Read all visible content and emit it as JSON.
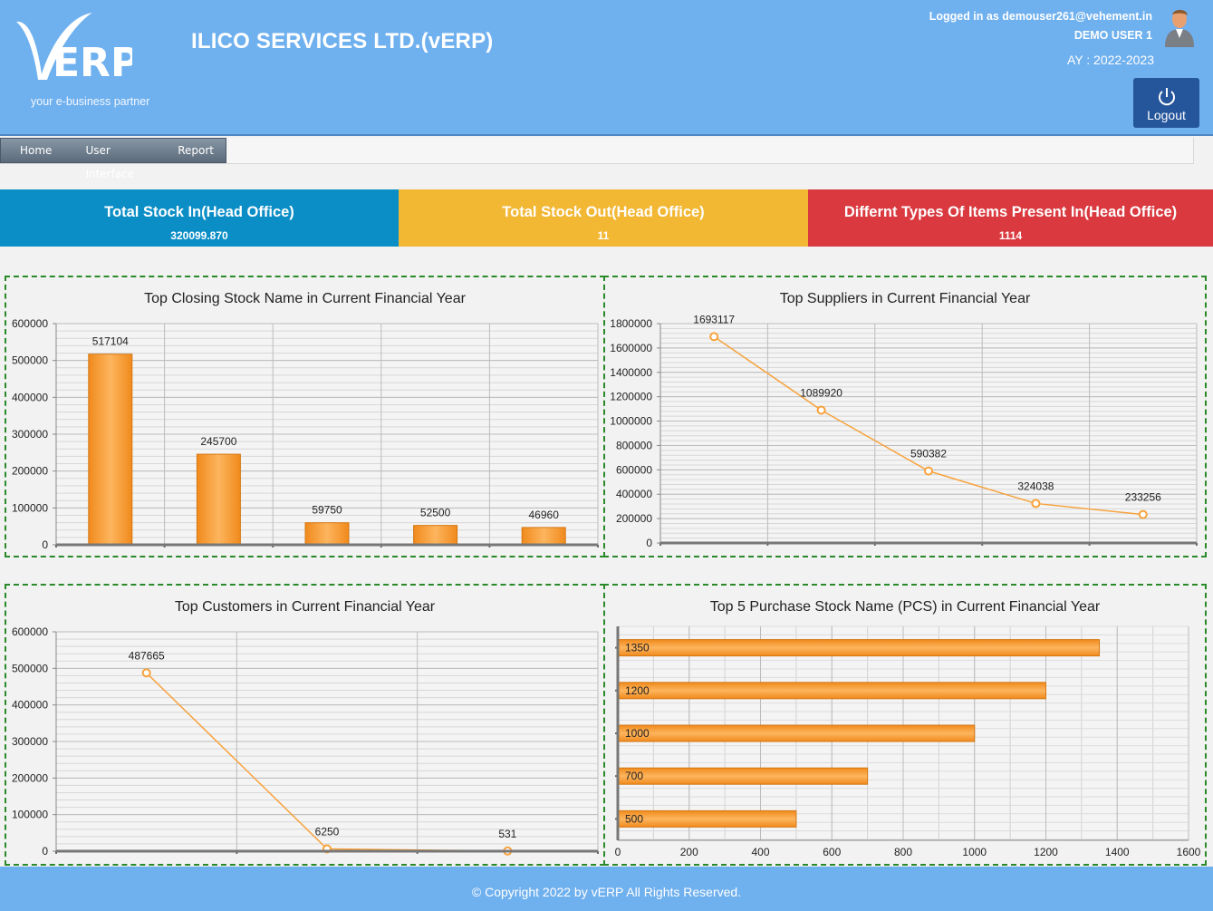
{
  "header": {
    "tagline": "your e-business partner",
    "company": "ILICO SERVICES LTD.(vERP)",
    "logged_in": "Logged in as demouser261@vehement.in",
    "user_name": "DEMO USER 1",
    "ay": "AY : 2022-2023",
    "logout_label": "Logout"
  },
  "menu": {
    "items": [
      "Home",
      "User Interface",
      "Report"
    ]
  },
  "stats": [
    {
      "label": "Total Stock In(Head Office)",
      "value": "320099.870",
      "color": "#0b8ec6"
    },
    {
      "label": "Total Stock Out(Head Office)",
      "value": "11",
      "color": "#f2b733"
    },
    {
      "label": "Differnt Types Of Items Present In(Head Office)",
      "value": "1114",
      "color": "#d9393f"
    }
  ],
  "chart_data": [
    {
      "type": "bar",
      "title": "Top Closing Stock Name in Current Financial Year",
      "values": [
        517104,
        245700,
        59750,
        52500,
        46960
      ],
      "ylim": [
        0,
        600000
      ],
      "yticks": [
        0,
        100000,
        200000,
        300000,
        400000,
        500000,
        600000
      ],
      "color": "#f7a23c"
    },
    {
      "type": "line",
      "title": "Top Suppliers in Current Financial Year",
      "values": [
        1693117,
        1089920,
        590382,
        324038,
        233256
      ],
      "ylim": [
        0,
        1800000
      ],
      "yticks": [
        0,
        200000,
        400000,
        600000,
        800000,
        1000000,
        1200000,
        1400000,
        1600000,
        1800000
      ],
      "color": "#f7a23c"
    },
    {
      "type": "line",
      "title": "Top Customers in Current Financial Year",
      "values": [
        487665,
        6250,
        531
      ],
      "ylim": [
        0,
        600000
      ],
      "yticks": [
        0,
        100000,
        200000,
        300000,
        400000,
        500000,
        600000
      ],
      "color": "#f7a23c"
    },
    {
      "type": "bar",
      "orientation": "horizontal",
      "title": "Top 5 Purchase Stock Name (PCS) in Current Financial Year",
      "values": [
        1350,
        1200,
        1000,
        700,
        500
      ],
      "xlim": [
        0,
        1600
      ],
      "xticks": [
        0,
        200,
        400,
        600,
        800,
        1000,
        1200,
        1400,
        1600
      ],
      "color": "#f7a23c"
    }
  ],
  "footer": {
    "copyright": "© Copyright 2022 by vERP All Rights Reserved."
  }
}
